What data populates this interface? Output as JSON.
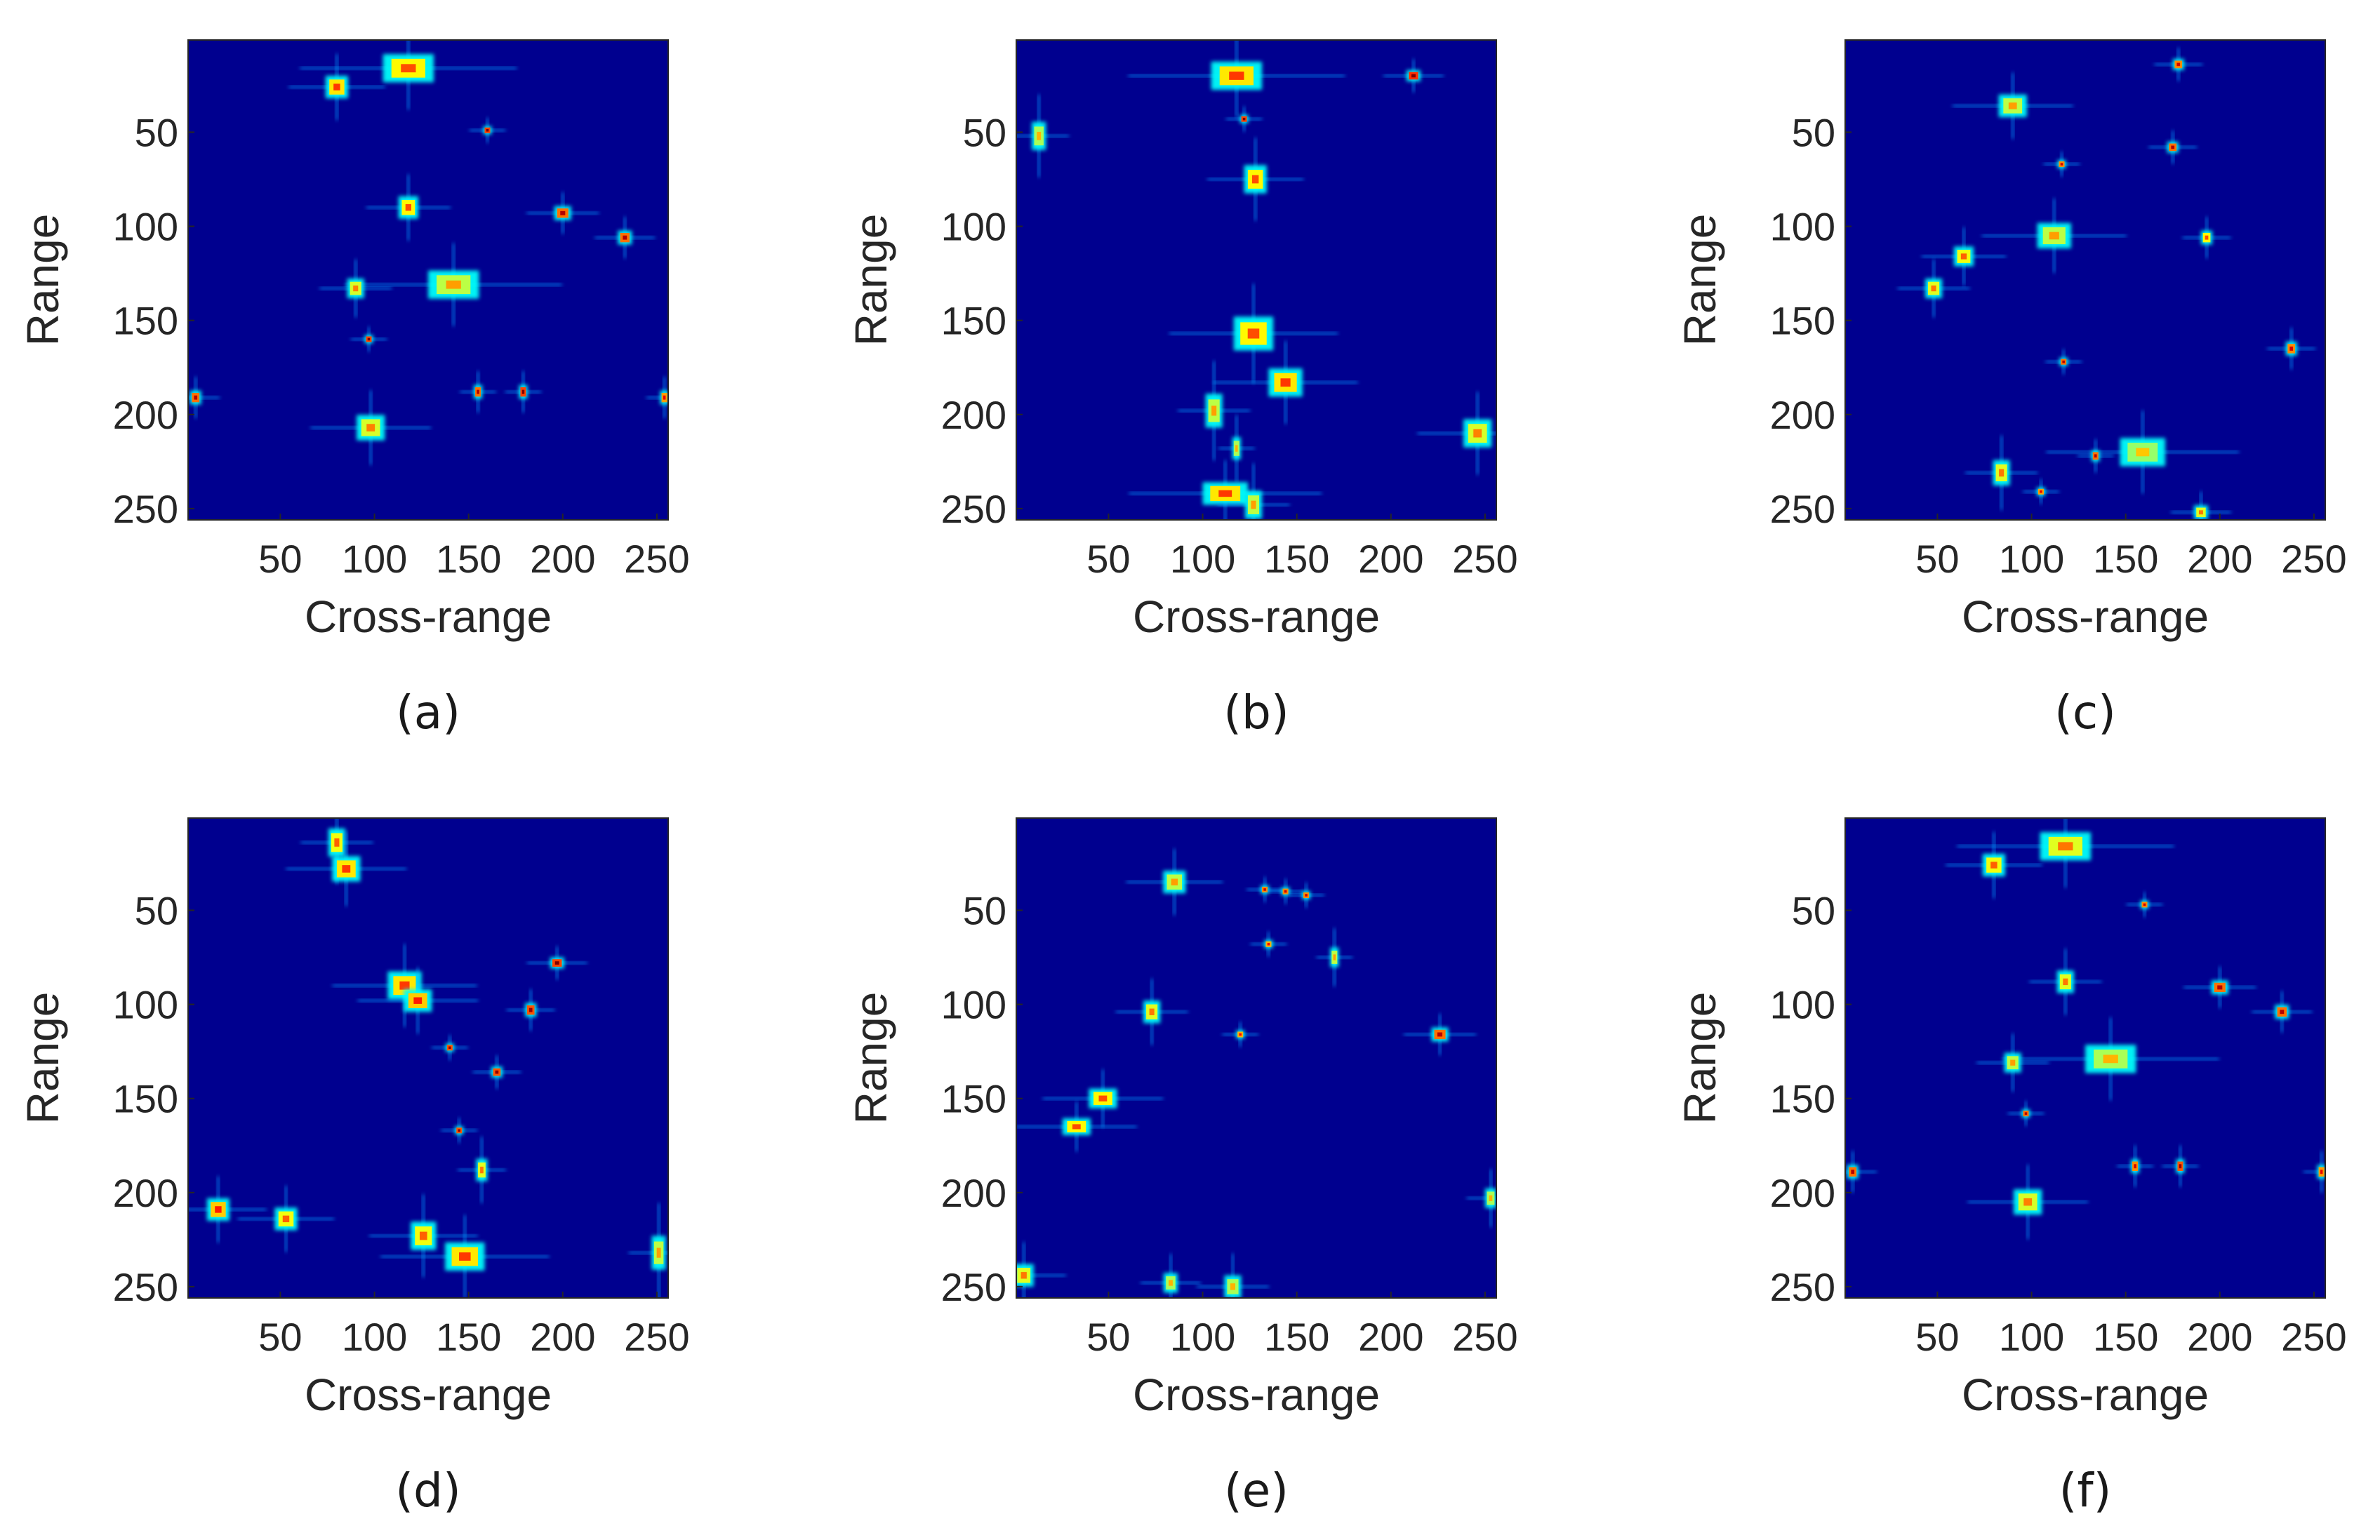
{
  "colors": {
    "background": "#00008f",
    "colormap": [
      "#00008f",
      "#0000ff",
      "#0080ff",
      "#00ffff",
      "#80ff80",
      "#ffff00",
      "#ff8000",
      "#ff0000",
      "#800000"
    ]
  },
  "chart_data": [
    {
      "type": "heatmap",
      "caption": "(a)",
      "xlabel": "Cross-range",
      "ylabel": "Range",
      "xlim": [
        1,
        256
      ],
      "ylim": [
        1,
        256
      ],
      "xticks": [
        50,
        100,
        150,
        200,
        250
      ],
      "yticks": [
        50,
        100,
        150,
        200,
        250
      ],
      "scatterers": [
        {
          "x": 118,
          "y": 16,
          "w": 18,
          "h": 10,
          "v": 0.7
        },
        {
          "x": 80,
          "y": 26,
          "w": 8,
          "h": 8,
          "v": 0.72
        },
        {
          "x": 160,
          "y": 49,
          "w": 3,
          "h": 3,
          "v": 0.9
        },
        {
          "x": 118,
          "y": 90,
          "w": 7,
          "h": 8,
          "v": 0.7
        },
        {
          "x": 200,
          "y": 93,
          "w": 6,
          "h": 5,
          "v": 0.85
        },
        {
          "x": 233,
          "y": 106,
          "w": 5,
          "h": 5,
          "v": 0.85
        },
        {
          "x": 142,
          "y": 131,
          "w": 18,
          "h": 10,
          "v": 0.62
        },
        {
          "x": 90,
          "y": 133,
          "w": 6,
          "h": 7,
          "v": 0.65
        },
        {
          "x": 97,
          "y": 160,
          "w": 3,
          "h": 3,
          "v": 0.9
        },
        {
          "x": 155,
          "y": 188,
          "w": 3,
          "h": 5,
          "v": 0.85
        },
        {
          "x": 179,
          "y": 188,
          "w": 3,
          "h": 5,
          "v": 0.9
        },
        {
          "x": 5,
          "y": 191,
          "w": 4,
          "h": 5,
          "v": 0.85
        },
        {
          "x": 254,
          "y": 191,
          "w": 3,
          "h": 5,
          "v": 0.8
        },
        {
          "x": 98,
          "y": 207,
          "w": 10,
          "h": 9,
          "v": 0.65
        }
      ]
    },
    {
      "type": "heatmap",
      "caption": "(b)",
      "xlabel": "Cross-range",
      "ylabel": "Range",
      "xlim": [
        1,
        256
      ],
      "ylim": [
        1,
        256
      ],
      "xticks": [
        50,
        100,
        150,
        200,
        250
      ],
      "yticks": [
        50,
        100,
        150,
        200,
        250
      ],
      "scatterers": [
        {
          "x": 118,
          "y": 20,
          "w": 18,
          "h": 10,
          "v": 0.72
        },
        {
          "x": 212,
          "y": 20,
          "w": 5,
          "h": 4,
          "v": 0.92
        },
        {
          "x": 122,
          "y": 43,
          "w": 3,
          "h": 3,
          "v": 0.9
        },
        {
          "x": 13,
          "y": 52,
          "w": 5,
          "h": 10,
          "v": 0.6
        },
        {
          "x": 128,
          "y": 75,
          "w": 8,
          "h": 10,
          "v": 0.7
        },
        {
          "x": 127,
          "y": 157,
          "w": 14,
          "h": 12,
          "v": 0.7
        },
        {
          "x": 144,
          "y": 183,
          "w": 12,
          "h": 10,
          "v": 0.72
        },
        {
          "x": 106,
          "y": 198,
          "w": 6,
          "h": 12,
          "v": 0.62
        },
        {
          "x": 118,
          "y": 218,
          "w": 3,
          "h": 8,
          "v": 0.6
        },
        {
          "x": 246,
          "y": 210,
          "w": 10,
          "h": 10,
          "v": 0.65
        },
        {
          "x": 112,
          "y": 242,
          "w": 16,
          "h": 8,
          "v": 0.72
        },
        {
          "x": 127,
          "y": 248,
          "w": 6,
          "h": 10,
          "v": 0.62
        }
      ]
    },
    {
      "type": "heatmap",
      "caption": "(c)",
      "xlabel": "Cross-range",
      "ylabel": "Range",
      "xlim": [
        1,
        256
      ],
      "ylim": [
        1,
        256
      ],
      "xticks": [
        50,
        100,
        150,
        200,
        250
      ],
      "yticks": [
        50,
        100,
        150,
        200,
        250
      ],
      "scatterers": [
        {
          "x": 178,
          "y": 14,
          "w": 4,
          "h": 4,
          "v": 0.82
        },
        {
          "x": 90,
          "y": 36,
          "w": 10,
          "h": 8,
          "v": 0.62
        },
        {
          "x": 175,
          "y": 58,
          "w": 4,
          "h": 4,
          "v": 0.85
        },
        {
          "x": 116,
          "y": 67,
          "w": 3,
          "h": 3,
          "v": 0.82
        },
        {
          "x": 112,
          "y": 105,
          "w": 12,
          "h": 9,
          "v": 0.62
        },
        {
          "x": 193,
          "y": 106,
          "w": 4,
          "h": 5,
          "v": 0.7
        },
        {
          "x": 64,
          "y": 116,
          "w": 7,
          "h": 7,
          "v": 0.68
        },
        {
          "x": 48,
          "y": 133,
          "w": 6,
          "h": 7,
          "v": 0.66
        },
        {
          "x": 238,
          "y": 165,
          "w": 4,
          "h": 5,
          "v": 0.82
        },
        {
          "x": 117,
          "y": 172,
          "w": 3,
          "h": 3,
          "v": 0.85
        },
        {
          "x": 159,
          "y": 220,
          "w": 16,
          "h": 10,
          "v": 0.58
        },
        {
          "x": 134,
          "y": 222,
          "w": 3,
          "h": 4,
          "v": 0.85
        },
        {
          "x": 84,
          "y": 231,
          "w": 6,
          "h": 9,
          "v": 0.66
        },
        {
          "x": 105,
          "y": 241,
          "w": 3,
          "h": 3,
          "v": 0.8
        },
        {
          "x": 190,
          "y": 252,
          "w": 5,
          "h": 5,
          "v": 0.66
        }
      ]
    },
    {
      "type": "heatmap",
      "caption": "(d)",
      "xlabel": "Cross-range",
      "ylabel": "Range",
      "xlim": [
        1,
        256
      ],
      "ylim": [
        1,
        256
      ],
      "xticks": [
        50,
        100,
        150,
        200,
        250
      ],
      "yticks": [
        50,
        100,
        150,
        200,
        250
      ],
      "scatterers": [
        {
          "x": 80,
          "y": 14,
          "w": 6,
          "h": 10,
          "v": 0.68
        },
        {
          "x": 85,
          "y": 28,
          "w": 10,
          "h": 9,
          "v": 0.72
        },
        {
          "x": 197,
          "y": 78,
          "w": 5,
          "h": 4,
          "v": 0.9
        },
        {
          "x": 116,
          "y": 90,
          "w": 12,
          "h": 10,
          "v": 0.72
        },
        {
          "x": 123,
          "y": 98,
          "w": 10,
          "h": 8,
          "v": 0.75
        },
        {
          "x": 183,
          "y": 103,
          "w": 4,
          "h": 5,
          "v": 0.88
        },
        {
          "x": 140,
          "y": 123,
          "w": 3,
          "h": 3,
          "v": 0.88
        },
        {
          "x": 165,
          "y": 136,
          "w": 4,
          "h": 4,
          "v": 0.88
        },
        {
          "x": 145,
          "y": 167,
          "w": 3,
          "h": 3,
          "v": 0.88
        },
        {
          "x": 157,
          "y": 188,
          "w": 4,
          "h": 8,
          "v": 0.66
        },
        {
          "x": 17,
          "y": 209,
          "w": 8,
          "h": 8,
          "v": 0.75
        },
        {
          "x": 53,
          "y": 214,
          "w": 8,
          "h": 8,
          "v": 0.68
        },
        {
          "x": 126,
          "y": 223,
          "w": 9,
          "h": 10,
          "v": 0.68
        },
        {
          "x": 148,
          "y": 234,
          "w": 14,
          "h": 10,
          "v": 0.72
        },
        {
          "x": 251,
          "y": 232,
          "w": 5,
          "h": 12,
          "v": 0.62
        }
      ]
    },
    {
      "type": "heatmap",
      "caption": "(e)",
      "xlabel": "Cross-range",
      "ylabel": "Range",
      "xlim": [
        1,
        256
      ],
      "ylim": [
        1,
        256
      ],
      "xticks": [
        50,
        100,
        150,
        200,
        250
      ],
      "yticks": [
        50,
        100,
        150,
        200,
        250
      ],
      "scatterers": [
        {
          "x": 85,
          "y": 35,
          "w": 8,
          "h": 8,
          "v": 0.62
        },
        {
          "x": 133,
          "y": 39,
          "w": 3,
          "h": 3,
          "v": 0.82
        },
        {
          "x": 144,
          "y": 40,
          "w": 3,
          "h": 3,
          "v": 0.82
        },
        {
          "x": 155,
          "y": 42,
          "w": 3,
          "h": 3,
          "v": 0.82
        },
        {
          "x": 135,
          "y": 68,
          "w": 3,
          "h": 3,
          "v": 0.78
        },
        {
          "x": 170,
          "y": 75,
          "w": 3,
          "h": 7,
          "v": 0.62
        },
        {
          "x": 73,
          "y": 104,
          "w": 6,
          "h": 8,
          "v": 0.66
        },
        {
          "x": 120,
          "y": 116,
          "w": 3,
          "h": 3,
          "v": 0.78
        },
        {
          "x": 226,
          "y": 116,
          "w": 6,
          "h": 5,
          "v": 0.85
        },
        {
          "x": 47,
          "y": 150,
          "w": 10,
          "h": 7,
          "v": 0.7
        },
        {
          "x": 33,
          "y": 165,
          "w": 10,
          "h": 6,
          "v": 0.7
        },
        {
          "x": 253,
          "y": 203,
          "w": 4,
          "h": 7,
          "v": 0.6
        },
        {
          "x": 5,
          "y": 244,
          "w": 7,
          "h": 8,
          "v": 0.66
        },
        {
          "x": 83,
          "y": 248,
          "w": 5,
          "h": 7,
          "v": 0.6
        },
        {
          "x": 116,
          "y": 250,
          "w": 6,
          "h": 8,
          "v": 0.6
        }
      ]
    },
    {
      "type": "heatmap",
      "caption": "(f)",
      "xlabel": "Cross-range",
      "ylabel": "Range",
      "xlim": [
        1,
        256
      ],
      "ylim": [
        1,
        256
      ],
      "xticks": [
        50,
        100,
        150,
        200,
        250
      ],
      "yticks": [
        50,
        100,
        150,
        200,
        250
      ],
      "scatterers": [
        {
          "x": 118,
          "y": 16,
          "w": 18,
          "h": 10,
          "v": 0.66
        },
        {
          "x": 80,
          "y": 26,
          "w": 8,
          "h": 8,
          "v": 0.68
        },
        {
          "x": 160,
          "y": 47,
          "w": 3,
          "h": 3,
          "v": 0.82
        },
        {
          "x": 118,
          "y": 88,
          "w": 6,
          "h": 8,
          "v": 0.66
        },
        {
          "x": 200,
          "y": 91,
          "w": 6,
          "h": 5,
          "v": 0.85
        },
        {
          "x": 233,
          "y": 104,
          "w": 5,
          "h": 5,
          "v": 0.85
        },
        {
          "x": 142,
          "y": 129,
          "w": 18,
          "h": 10,
          "v": 0.6
        },
        {
          "x": 90,
          "y": 131,
          "w": 6,
          "h": 7,
          "v": 0.62
        },
        {
          "x": 97,
          "y": 158,
          "w": 3,
          "h": 3,
          "v": 0.85
        },
        {
          "x": 155,
          "y": 186,
          "w": 3,
          "h": 5,
          "v": 0.82
        },
        {
          "x": 179,
          "y": 186,
          "w": 3,
          "h": 5,
          "v": 0.88
        },
        {
          "x": 5,
          "y": 189,
          "w": 4,
          "h": 5,
          "v": 0.85
        },
        {
          "x": 254,
          "y": 189,
          "w": 3,
          "h": 5,
          "v": 0.8
        },
        {
          "x": 98,
          "y": 205,
          "w": 10,
          "h": 9,
          "v": 0.65
        }
      ]
    }
  ]
}
